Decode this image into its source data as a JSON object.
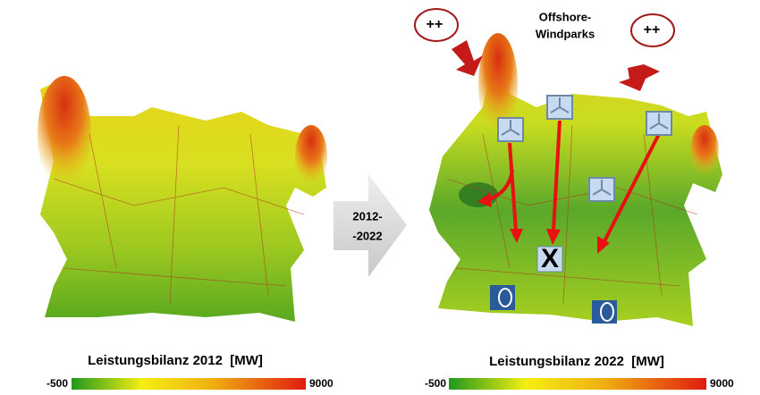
{
  "left": {
    "title": "Leistungsbilanz 2012  [MW]",
    "scale_min": -500,
    "scale_max": 9000
  },
  "transition": {
    "line1": "2012-",
    "line2": "-2022"
  },
  "right": {
    "title": "Leistungsbilanz 2022  [MW]",
    "scale_min": -500,
    "scale_max": 9000,
    "annotations": {
      "plus_left": "++",
      "plus_right": "++",
      "offshore_line1": "Offshore-",
      "offshore_line2": "Windparks",
      "blocked": "X"
    }
  }
}
